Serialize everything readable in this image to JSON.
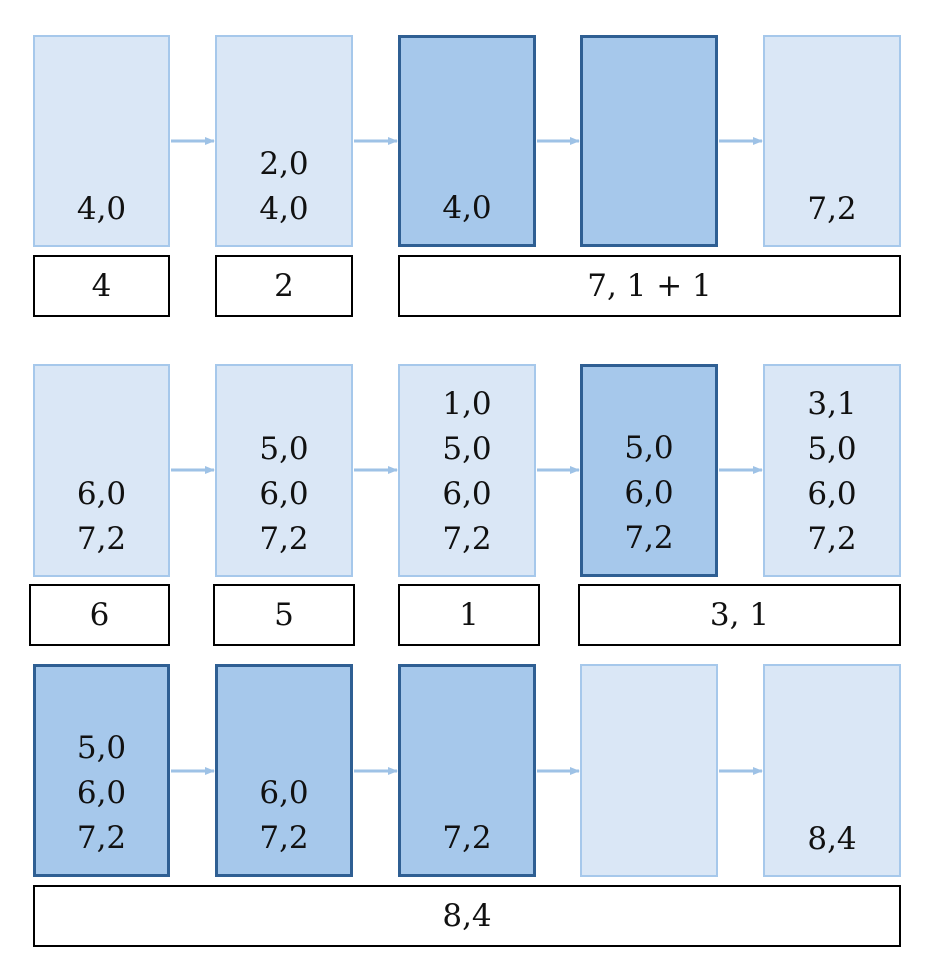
{
  "colors": {
    "light_fill": "#dae7f6",
    "light_border": "#a6c8eb",
    "dark_fill": "#a6c8eb",
    "dark_border": "#2f5f93",
    "arrow": "#9ec2e6"
  },
  "rows": [
    {
      "boxes": [
        {
          "style": "light",
          "values": [
            "4,0"
          ]
        },
        {
          "style": "light",
          "values": [
            "2,0",
            "4,0"
          ]
        },
        {
          "style": "dark",
          "values": [
            "4,0"
          ]
        },
        {
          "style": "dark",
          "values": []
        },
        {
          "style": "light",
          "values": [
            "7,2"
          ]
        }
      ],
      "labels": [
        "4",
        "2",
        "7, 1 + 1"
      ]
    },
    {
      "boxes": [
        {
          "style": "light",
          "values": [
            "6,0",
            "7,2"
          ]
        },
        {
          "style": "light",
          "values": [
            "5,0",
            "6,0",
            "7,2"
          ]
        },
        {
          "style": "light",
          "values": [
            "1,0",
            "5,0",
            "6,0",
            "7,2"
          ]
        },
        {
          "style": "dark",
          "values": [
            "5,0",
            "6,0",
            "7,2"
          ]
        },
        {
          "style": "light",
          "values": [
            "3,1",
            "5,0",
            "6,0",
            "7,2"
          ]
        }
      ],
      "labels": [
        "6",
        "5",
        "1",
        "3, 1"
      ]
    },
    {
      "boxes": [
        {
          "style": "dark",
          "values": [
            "5,0",
            "6,0",
            "7,2"
          ]
        },
        {
          "style": "dark",
          "values": [
            "6,0",
            "7,2"
          ]
        },
        {
          "style": "dark",
          "values": [
            "7,2"
          ]
        },
        {
          "style": "light",
          "values": []
        },
        {
          "style": "light",
          "values": [
            "8,4"
          ]
        }
      ],
      "labels": [
        "8,4"
      ]
    }
  ]
}
